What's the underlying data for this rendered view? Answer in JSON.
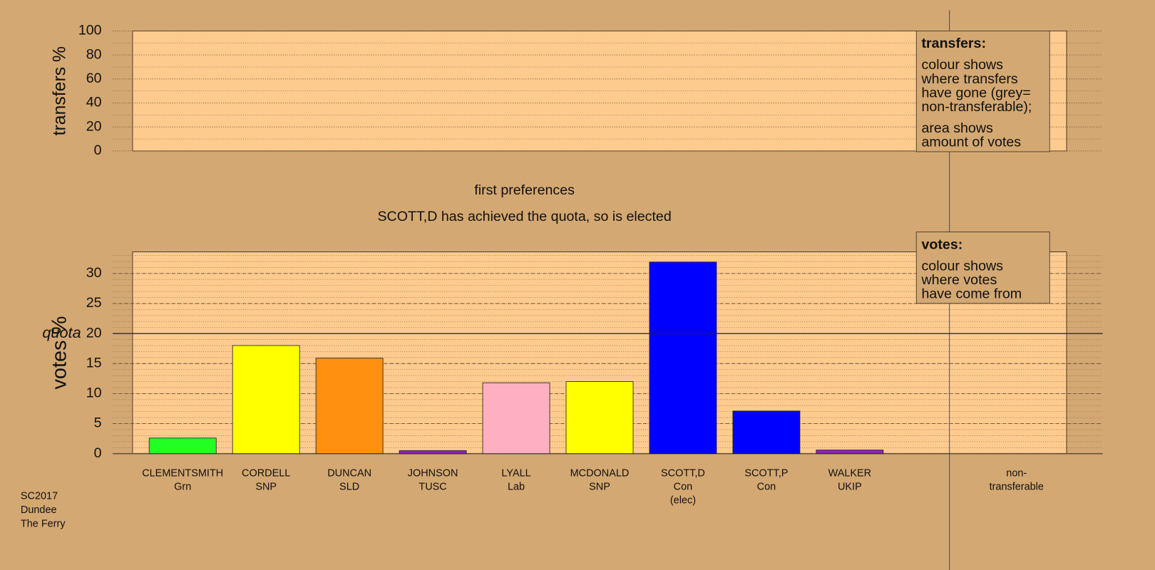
{
  "chart_data": [
    {
      "type": "empty",
      "y_label": "transfers %",
      "ylim": [
        0,
        100
      ],
      "yticks": [
        0,
        20,
        40,
        60,
        80,
        100
      ],
      "grid": true,
      "legend_box": {
        "title": "transfers:",
        "paragraphs": [
          [
            "colour shows",
            "where transfers",
            "have gone (grey=",
            "non-transferable);"
          ],
          [
            "area shows",
            "amount of votes"
          ]
        ]
      }
    },
    {
      "type": "bar",
      "title": "first preferences",
      "subtitle": "SCOTT,D has achieved the quota, so is elected",
      "y_label": "votes %",
      "categories": [
        [
          "CLEMENTSMITH",
          "Grn"
        ],
        [
          "CORDELL",
          "SNP"
        ],
        [
          "DUNCAN",
          "SLD"
        ],
        [
          "JOHNSON",
          "TUSC"
        ],
        [
          "LYALL",
          "Lab"
        ],
        [
          "MCDONALD",
          "SNP"
        ],
        [
          "SCOTT,D",
          "Con",
          "(elec)"
        ],
        [
          "SCOTT,P",
          "Con"
        ],
        [
          "WALKER",
          "UKIP"
        ],
        null,
        [
          "non-",
          "transferable"
        ]
      ],
      "values": [
        2.6,
        18,
        15.9,
        0.5,
        11.8,
        12,
        31.9,
        7.1,
        0.6,
        null,
        null
      ],
      "colors": [
        "#22ff22",
        "#ffff00",
        "#ff9010",
        "#9020c0",
        "#ffb0c0",
        "#ffff00",
        "#0000ff",
        "#0000ff",
        "#9020c0",
        null,
        null
      ],
      "ylim": [
        0,
        33.6
      ],
      "yticks": [
        0,
        5,
        10,
        15,
        20,
        25,
        30
      ],
      "grid": true,
      "quota": 20,
      "quota_label": "quota",
      "legend_box": {
        "title": "votes:",
        "paragraphs": [
          [
            "colour shows",
            "where votes",
            "have come from"
          ]
        ]
      }
    }
  ],
  "footer": [
    "SC2017",
    "Dundee",
    "The Ferry"
  ]
}
